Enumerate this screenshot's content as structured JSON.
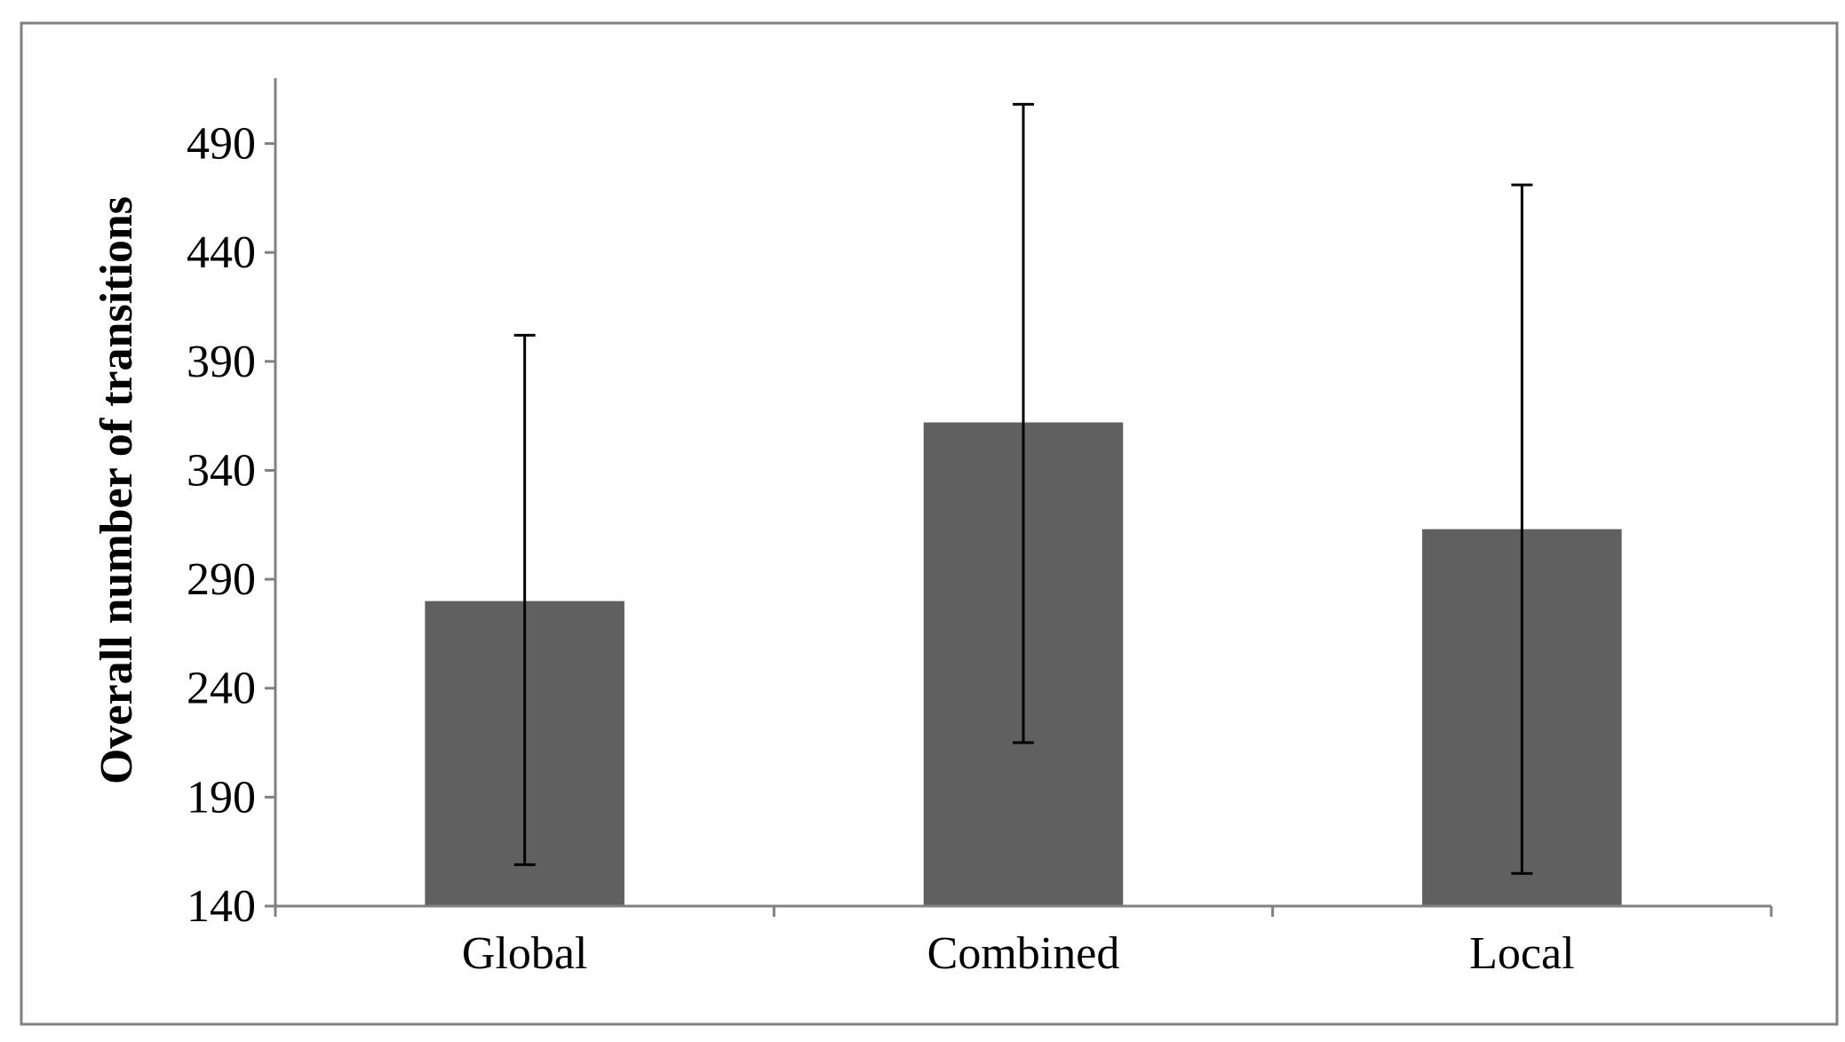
{
  "chart_data": {
    "type": "bar",
    "title": "",
    "xlabel": "",
    "ylabel": "Overall number of transitions",
    "categories": [
      "Global",
      "Combined",
      "Local"
    ],
    "values": [
      280,
      362,
      313
    ],
    "error_bars": {
      "upper": [
        402,
        508,
        471
      ],
      "lower": [
        159,
        215,
        155
      ]
    },
    "ylim": [
      140,
      520
    ],
    "yticks": [
      "140",
      "190",
      "240",
      "290",
      "340",
      "390",
      "440",
      "490"
    ],
    "grid": false,
    "legend": "none",
    "colors": {
      "bar": "#606060",
      "axis": "#808080",
      "error_bar": "#000000",
      "frame": "#808080"
    }
  }
}
